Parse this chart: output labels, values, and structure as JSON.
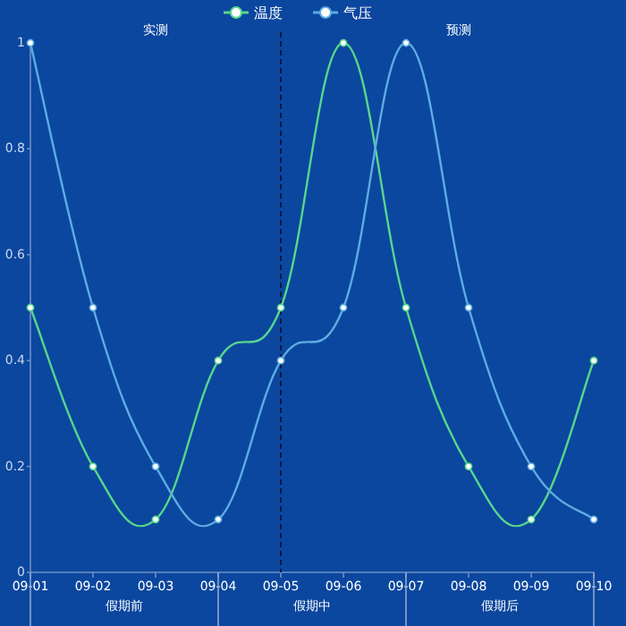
{
  "chart_data": {
    "type": "line",
    "categories": [
      "09-01",
      "09-02",
      "09-03",
      "09-04",
      "09-05",
      "09-06",
      "09-07",
      "09-08",
      "09-09",
      "09-10"
    ],
    "series": [
      {
        "name": "温度",
        "color": "#58d68d",
        "values": [
          0.5,
          0.2,
          0.1,
          0.4,
          0.5,
          1,
          0.5,
          0.2,
          0.1,
          0.4
        ]
      },
      {
        "name": "气压",
        "color": "#5dade2",
        "values": [
          1,
          0.5,
          0.2,
          0.1,
          0.4,
          0.5,
          1,
          0.5,
          0.2,
          0.1
        ]
      }
    ],
    "ylim": [
      0,
      1
    ],
    "yticks": [
      0,
      0.2,
      0.4,
      0.6,
      0.8,
      1
    ],
    "grid": false,
    "legend": "top",
    "marker": "circle",
    "line_style": "solid",
    "ref_lines": [
      {
        "axis": "x",
        "value": "09-05",
        "line_style": "dashed",
        "color": "#0a1a3a"
      }
    ],
    "annotations": [
      "实测",
      "预测",
      "假期前",
      "假期中",
      "假期后"
    ]
  }
}
